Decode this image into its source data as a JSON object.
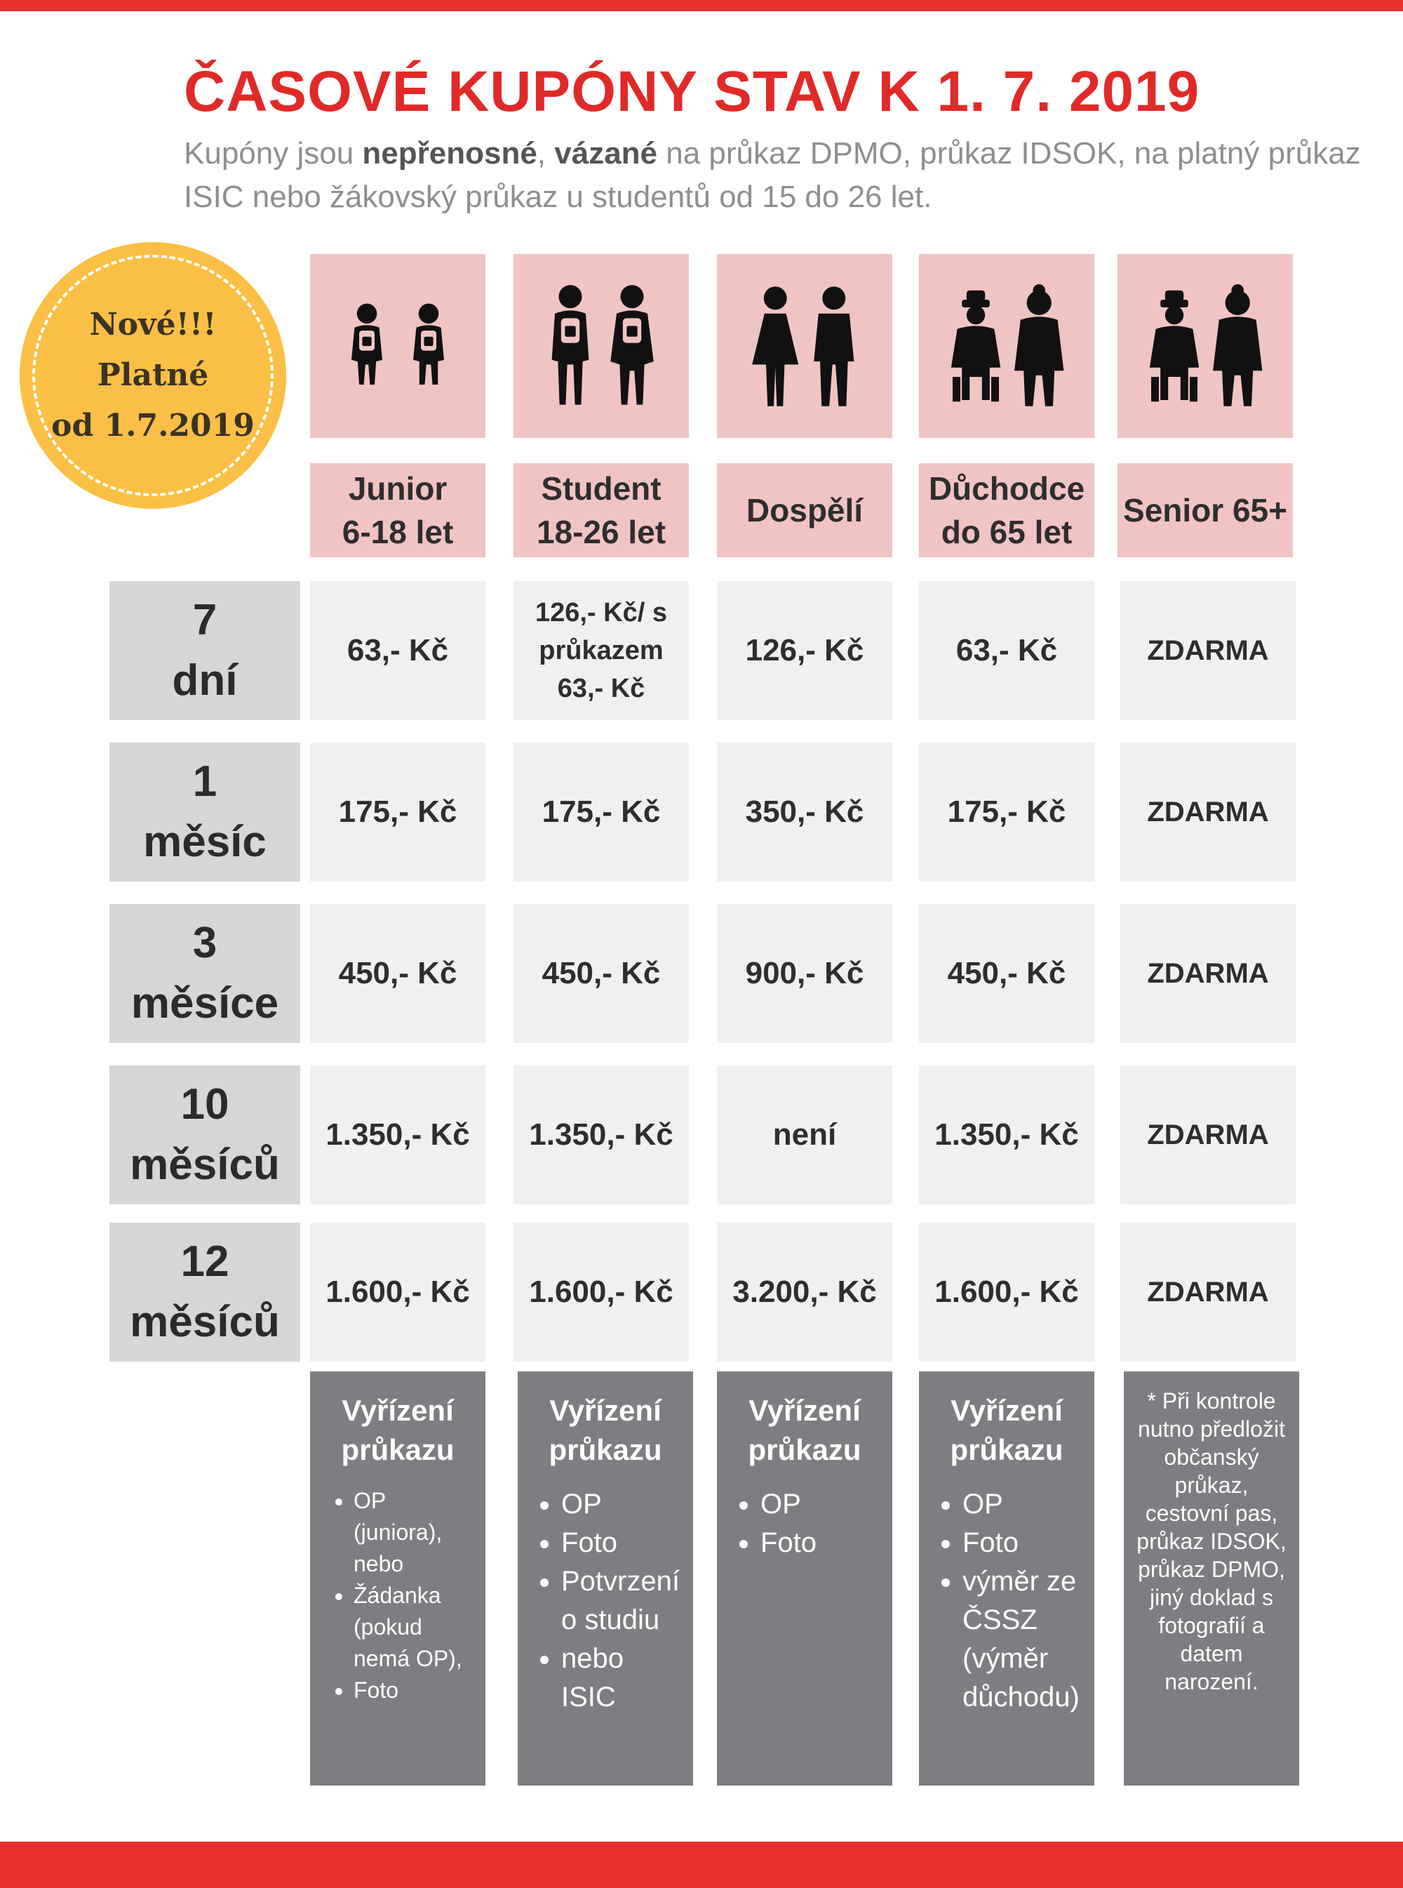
{
  "title": "ČASOVÉ KUPÓNY STAV K 1. 7. 2019",
  "subtitle": {
    "p1": "Kupóny jsou ",
    "b1": "nepřenosné",
    "p2": ", ",
    "b2": "vázané",
    "p3": " na průkaz DPMO, průkaz IDSOK, na platný průkaz ISIC nebo žákovský průkaz u studentů od 15 do 26 let."
  },
  "badge": {
    "line1": "Nové!!!",
    "line2": "Platné",
    "line3": "od 1.7.2019"
  },
  "columns": [
    {
      "line1": "Junior",
      "line2": "6-18 let",
      "icon": "junior-icon"
    },
    {
      "line1": "Student",
      "line2": "18-26 let",
      "icon": "student-icon"
    },
    {
      "line1": "Dospělí",
      "line2": "",
      "icon": "adults-icon"
    },
    {
      "line1": "Důchodce",
      "line2": "do 65 let",
      "icon": "pensioner-icon"
    },
    {
      "line1": "Senior 65+",
      "line2": "",
      "icon": "senior-icon"
    }
  ],
  "rows": [
    {
      "num": "7",
      "unit": "dní",
      "cells": [
        "63,- Kč",
        "126,- Kč/ s průkazem 63,- Kč",
        "126,- Kč",
        "63,- Kč",
        "ZDARMA"
      ]
    },
    {
      "num": "1",
      "unit": "měsíc",
      "cells": [
        "175,- Kč",
        "175,- Kč",
        "350,- Kč",
        "175,- Kč",
        "ZDARMA"
      ]
    },
    {
      "num": "3",
      "unit": "měsíce",
      "cells": [
        "450,- Kč",
        "450,- Kč",
        "900,- Kč",
        "450,- Kč",
        "ZDARMA"
      ]
    },
    {
      "num": "10",
      "unit": "měsíců",
      "cells": [
        "1.350,- Kč",
        "1.350,- Kč",
        "není",
        "1.350,- Kč",
        "ZDARMA"
      ]
    },
    {
      "num": "12",
      "unit": "měsíců",
      "cells": [
        "1.600,- Kč",
        "1.600,- Kč",
        "3.200,- Kč",
        "1.600,- Kč",
        "ZDARMA"
      ]
    }
  ],
  "info": [
    {
      "heading": "Vyřízení průkazu",
      "items": [
        "OP (juniora), nebo",
        "Žádanka (pokud nemá OP),",
        "Foto"
      ]
    },
    {
      "heading": "Vyřízení průkazu",
      "items": [
        "OP",
        "Foto",
        "Potvrzení o studiu",
        "nebo ISIC"
      ]
    },
    {
      "heading": "Vyřízení průkazu",
      "items": [
        "OP",
        "Foto"
      ]
    },
    {
      "heading": "Vyřízení průkazu",
      "items": [
        "OP",
        "Foto",
        "výměr ze ČSSZ (výměr důchodu)"
      ]
    }
  ],
  "note": "* Při kontrole nutno předložit občanský průkaz, cestovní pas, průkaz IDSOK, průkaz DPMO, jiný doklad s fotografií a datem narození.",
  "colors": {
    "accent": "#e02a27",
    "bar": "#e8302a",
    "header_bg": "#f0c4c2",
    "badge": "#fbbf45",
    "info_bg": "#7e7d81"
  }
}
